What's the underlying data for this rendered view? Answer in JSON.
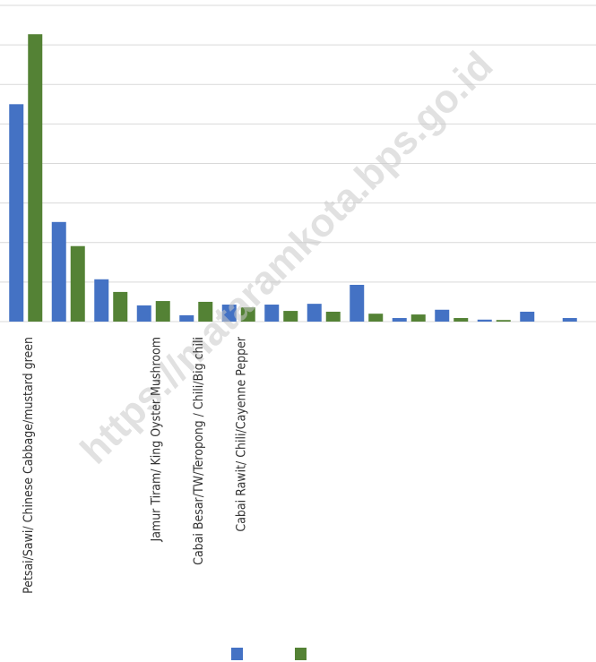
{
  "chart_data": {
    "type": "bar",
    "categories": [
      "Petsai/Sawi/ Chinese Cabbage/mustard green",
      null,
      null,
      "Jamur Tiram/ King Oyster Mushroom",
      "Cabai Besar/TW/Teropong / Chili/Big chili",
      "Cabai Rawit/ Chili/Cayenne Pepper",
      null,
      null,
      null,
      null,
      null,
      null,
      null,
      null
    ],
    "series": [
      {
        "color": "#4472c4",
        "values": [
          5.5,
          2.52,
          1.07,
          0.41,
          0.16,
          0.43,
          0.43,
          0.45,
          0.93,
          0.09,
          0.3,
          0.05,
          0.25,
          0.09
        ]
      },
      {
        "color": "#548235",
        "values": [
          7.27,
          1.91,
          0.75,
          0.52,
          0.5,
          0.36,
          0.27,
          0.25,
          0.2,
          0.18,
          0.09,
          0.04,
          0,
          0
        ]
      }
    ],
    "ylim": [
      0,
      8
    ],
    "yticks": [
      0,
      1,
      2,
      3,
      4,
      5,
      6,
      7,
      8
    ],
    "grid": true,
    "annotation": "https://mataramkota.bps.go.id"
  }
}
